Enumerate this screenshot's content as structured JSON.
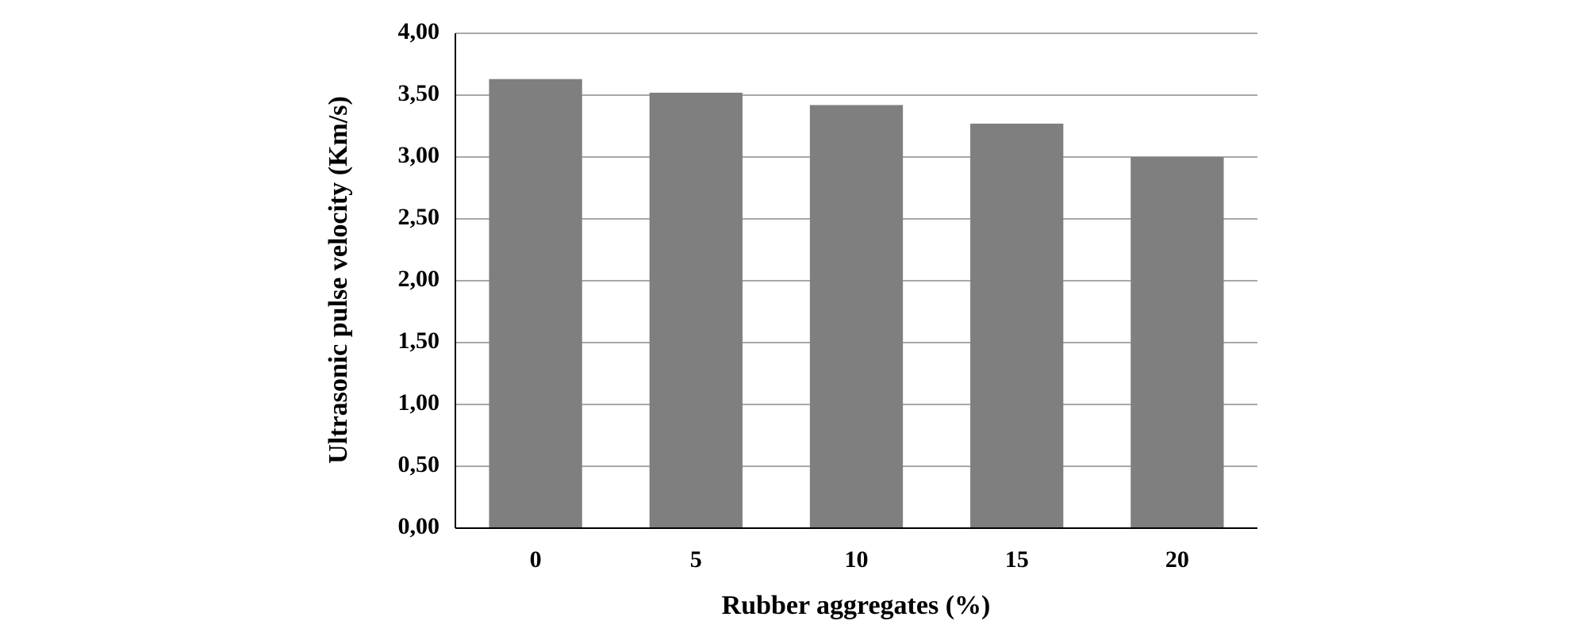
{
  "chart_data": {
    "type": "bar",
    "categories": [
      "0",
      "5",
      "10",
      "15",
      "20"
    ],
    "values": [
      3.63,
      3.52,
      3.42,
      3.27,
      3.0
    ],
    "color": "#7f7f7f",
    "x_label": "Rubber aggregates (%)",
    "y_label": "Ultrasonic pulse velocity (Km/s)",
    "ylim": [
      0,
      4
    ],
    "yticks": [
      {
        "value": 0,
        "label": "0,00"
      },
      {
        "value": 0.5,
        "label": "0,50"
      },
      {
        "value": 1,
        "label": "1,00"
      },
      {
        "value": 1.5,
        "label": "1,50"
      },
      {
        "value": 2,
        "label": "2,00"
      },
      {
        "value": 2.5,
        "label": "2,50"
      },
      {
        "value": 3,
        "label": "3,00"
      },
      {
        "value": 3.5,
        "label": "3,50"
      },
      {
        "value": 4,
        "label": "4,00"
      }
    ],
    "grid": true
  }
}
